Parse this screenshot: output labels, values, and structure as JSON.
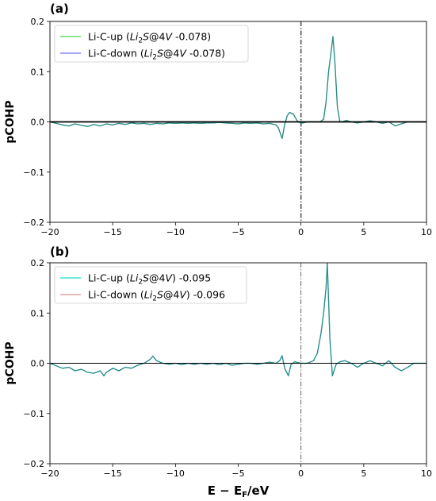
{
  "chart_data": [
    {
      "type": "line",
      "panel_label": "(a)",
      "xlabel": "",
      "ylabel": "pCOHP",
      "xlim": [
        -20,
        10
      ],
      "ylim": [
        -0.2,
        0.2
      ],
      "xticks": [
        "−20",
        "−15",
        "−10",
        "−5",
        "0",
        "5",
        "10"
      ],
      "yticks": [
        "0.2",
        "0.1",
        "0.0",
        "−0.1",
        "−0.2"
      ],
      "legend": "top-left",
      "legend_text": [
        {
          "base": "Li-C-up (",
          "it": "Li",
          "sub": "2",
          "it2": "S",
          "rest": "@4",
          "it3": "V",
          "tail": " -0.078)"
        },
        {
          "base": "Li-C-down (",
          "it": "Li",
          "sub": "2",
          "it2": "S",
          "rest": "@4",
          "it3": "V",
          "tail": " -0.078)"
        }
      ],
      "series": [
        {
          "name": "Li-C-up (Li2S@4V -0.078)",
          "color": "#66dd66",
          "x": [
            -20,
            -19.5,
            -19,
            -18.5,
            -18,
            -17.5,
            -17,
            -16.5,
            -16,
            -15.5,
            -15,
            -14.5,
            -14,
            -13.5,
            -13,
            -12.5,
            -12,
            -11.5,
            -11,
            -10.5,
            -10,
            -9.5,
            -9,
            -8.5,
            -8,
            -7.5,
            -7,
            -6.5,
            -6,
            -5.5,
            -5,
            -4.5,
            -4,
            -3.5,
            -3,
            -2.5,
            -2,
            -1.8,
            -1.5,
            -1.3,
            -1.1,
            -0.9,
            -0.6,
            -0.3,
            0,
            0.5,
            1,
            1.5,
            1.8,
            2.0,
            2.2,
            2.4,
            2.55,
            2.7,
            2.9,
            3.1,
            3.3,
            3.6,
            4,
            4.5,
            5,
            5.5,
            6,
            6.5,
            7,
            7.5,
            8,
            8.5,
            9,
            9.5,
            10
          ],
          "y": [
            0,
            -0.003,
            -0.006,
            -0.008,
            -0.004,
            -0.007,
            -0.009,
            -0.005,
            -0.008,
            -0.004,
            -0.006,
            -0.003,
            -0.005,
            -0.002,
            -0.004,
            -0.003,
            -0.005,
            -0.003,
            -0.004,
            -0.002,
            -0.003,
            -0.002,
            -0.003,
            -0.002,
            -0.003,
            -0.002,
            -0.002,
            -0.001,
            -0.002,
            -0.003,
            -0.004,
            -0.002,
            -0.003,
            -0.002,
            -0.004,
            -0.003,
            -0.006,
            -0.012,
            -0.033,
            -0.005,
            0.012,
            0.019,
            0.015,
            0.002,
            -0.003,
            0,
            0,
            0,
            0.005,
            0.04,
            0.1,
            0.14,
            0.17,
            0.12,
            0.03,
            0,
            0,
            0.003,
            0,
            -0.002,
            0,
            0.002,
            0,
            -0.003,
            0,
            -0.008,
            -0.004,
            0,
            0,
            0,
            0
          ]
        },
        {
          "name": "Li-C-down (Li2S@4V -0.078)",
          "color": "#8888ee",
          "x": [
            -20,
            -19.5,
            -19,
            -18.5,
            -18,
            -17.5,
            -17,
            -16.5,
            -16,
            -15.5,
            -15,
            -14.5,
            -14,
            -13.5,
            -13,
            -12.5,
            -12,
            -11.5,
            -11,
            -10.5,
            -10,
            -9.5,
            -9,
            -8.5,
            -8,
            -7.5,
            -7,
            -6.5,
            -6,
            -5.5,
            -5,
            -4.5,
            -4,
            -3.5,
            -3,
            -2.5,
            -2,
            -1.8,
            -1.5,
            -1.3,
            -1.1,
            -0.9,
            -0.6,
            -0.3,
            0,
            0.5,
            1,
            1.5,
            1.8,
            2.0,
            2.2,
            2.4,
            2.55,
            2.7,
            2.9,
            3.1,
            3.3,
            3.6,
            4,
            4.5,
            5,
            5.5,
            6,
            6.5,
            7,
            7.5,
            8,
            8.5,
            9,
            9.5,
            10
          ],
          "y": [
            0,
            -0.003,
            -0.006,
            -0.008,
            -0.004,
            -0.007,
            -0.009,
            -0.005,
            -0.008,
            -0.004,
            -0.006,
            -0.003,
            -0.005,
            -0.002,
            -0.004,
            -0.003,
            -0.005,
            -0.003,
            -0.004,
            -0.002,
            -0.003,
            -0.002,
            -0.003,
            -0.002,
            -0.003,
            -0.002,
            -0.002,
            -0.001,
            -0.002,
            -0.003,
            -0.004,
            -0.002,
            -0.003,
            -0.002,
            -0.004,
            -0.003,
            -0.006,
            -0.012,
            -0.033,
            -0.005,
            0.012,
            0.019,
            0.015,
            0.002,
            -0.003,
            0,
            0,
            0,
            0.005,
            0.04,
            0.1,
            0.14,
            0.17,
            0.12,
            0.03,
            0,
            0,
            0.003,
            0,
            -0.002,
            0,
            0.002,
            0,
            -0.003,
            0,
            -0.008,
            -0.004,
            0,
            0,
            0,
            0
          ]
        }
      ]
    },
    {
      "type": "line",
      "panel_label": "(b)",
      "xlabel": "E − E_F/eV",
      "ylabel": "pCOHP",
      "xlim": [
        -20,
        10
      ],
      "ylim": [
        -0.2,
        0.2
      ],
      "xticks": [
        "−20",
        "−15",
        "−10",
        "−5",
        "0",
        "5",
        "10"
      ],
      "yticks": [
        "0.2",
        "0.1",
        "0.0",
        "−0.1",
        "−0.2"
      ],
      "legend": "top-left",
      "legend_text": [
        {
          "base": "Li-C-up (",
          "it": "Li",
          "sub": "2",
          "it2": "S",
          "rest": "@4",
          "it3": "V",
          "tail": ") -0.095"
        },
        {
          "base": "Li-C-down (",
          "it": "Li",
          "sub": "2",
          "it2": "S",
          "rest": "@4",
          "it3": "V",
          "tail": ") -0.096"
        }
      ],
      "series": [
        {
          "name": "Li-C-up (Li2S@4V) -0.095",
          "color": "#40e0d0",
          "x": [
            -20,
            -19.5,
            -19,
            -18.5,
            -18,
            -17.5,
            -17,
            -16.5,
            -16,
            -15.7,
            -15.5,
            -15,
            -14.5,
            -14,
            -13.5,
            -13,
            -12.5,
            -12,
            -11.8,
            -11.5,
            -11,
            -10.5,
            -10,
            -9.5,
            -9,
            -8.5,
            -8,
            -7.5,
            -7,
            -6.5,
            -6,
            -5.5,
            -5,
            -4.5,
            -4,
            -3.5,
            -3,
            -2.5,
            -2,
            -1.7,
            -1.5,
            -1.3,
            -1.0,
            -0.8,
            -0.5,
            0,
            0.5,
            1,
            1.3,
            1.6,
            1.8,
            2.0,
            2.1,
            2.3,
            2.5,
            2.8,
            3.1,
            3.5,
            4,
            4.5,
            5,
            5.5,
            6,
            6.5,
            7,
            7.5,
            8,
            8.5,
            9,
            9.5,
            10
          ],
          "y": [
            0,
            -0.005,
            -0.01,
            -0.008,
            -0.015,
            -0.012,
            -0.018,
            -0.02,
            -0.015,
            -0.025,
            -0.018,
            -0.01,
            -0.015,
            -0.008,
            -0.01,
            -0.004,
            0,
            0.008,
            0.014,
            0.005,
            0,
            -0.002,
            0,
            -0.003,
            0,
            -0.002,
            0,
            -0.002,
            0,
            -0.003,
            0,
            -0.004,
            -0.002,
            0,
            0,
            -0.002,
            0,
            0.002,
            0,
            0.005,
            0.015,
            -0.01,
            -0.025,
            -0.003,
            0.003,
            0,
            0,
            0.005,
            0.02,
            0.06,
            0.1,
            0.15,
            0.2,
            0.05,
            -0.025,
            -0.002,
            0.003,
            0.005,
            0,
            -0.008,
            0,
            0.005,
            0,
            -0.005,
            0.005,
            -0.008,
            -0.015,
            -0.008,
            0,
            0,
            0
          ]
        },
        {
          "name": "Li-C-down (Li2S@4V) -0.096",
          "color": "#d9a0a0",
          "x": [
            -20,
            -19.5,
            -19,
            -18.5,
            -18,
            -17.5,
            -17,
            -16.5,
            -16,
            -15.7,
            -15.5,
            -15,
            -14.5,
            -14,
            -13.5,
            -13,
            -12.5,
            -12,
            -11.8,
            -11.5,
            -11,
            -10.5,
            -10,
            -9.5,
            -9,
            -8.5,
            -8,
            -7.5,
            -7,
            -6.5,
            -6,
            -5.5,
            -5,
            -4.5,
            -4,
            -3.5,
            -3,
            -2.5,
            -2,
            -1.7,
            -1.5,
            -1.3,
            -1.0,
            -0.8,
            -0.5,
            0,
            0.5,
            1,
            1.3,
            1.6,
            1.8,
            2.0,
            2.1,
            2.3,
            2.5,
            2.8,
            3.1,
            3.5,
            4,
            4.5,
            5,
            5.5,
            6,
            6.5,
            7,
            7.5,
            8,
            8.5,
            9,
            9.5,
            10
          ],
          "y": [
            0,
            -0.005,
            -0.01,
            -0.008,
            -0.015,
            -0.012,
            -0.018,
            -0.02,
            -0.015,
            -0.025,
            -0.018,
            -0.01,
            -0.015,
            -0.008,
            -0.01,
            -0.004,
            0,
            0.008,
            0.014,
            0.005,
            0,
            -0.002,
            0,
            -0.003,
            0,
            -0.002,
            0,
            -0.002,
            0,
            -0.003,
            0,
            -0.004,
            -0.002,
            0,
            0,
            -0.002,
            0,
            0.002,
            0,
            0.005,
            0.015,
            -0.01,
            -0.025,
            -0.003,
            0.003,
            0,
            0,
            0.005,
            0.02,
            0.06,
            0.1,
            0.15,
            0.2,
            0.05,
            -0.025,
            -0.002,
            0.003,
            0.005,
            0,
            -0.008,
            0,
            0.005,
            0,
            -0.005,
            0.005,
            -0.008,
            -0.015,
            -0.008,
            0,
            0,
            0
          ]
        }
      ]
    }
  ]
}
